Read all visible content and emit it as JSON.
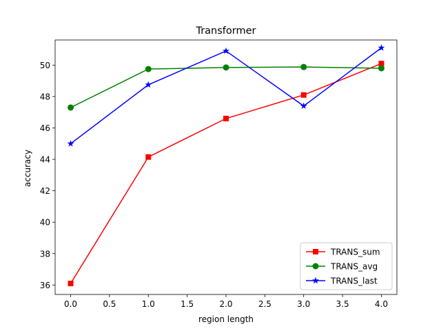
{
  "chart_data": {
    "type": "line",
    "title": "Transformer",
    "xlabel": "region length",
    "ylabel": "accuracy",
    "xlim": [
      -0.2,
      4.2
    ],
    "ylim": [
      35.4,
      51.6
    ],
    "xticks": [
      0.0,
      0.5,
      1.0,
      1.5,
      2.0,
      2.5,
      3.0,
      3.5,
      4.0
    ],
    "xtick_labels": [
      "0.0",
      "0.5",
      "1.0",
      "1.5",
      "2.0",
      "2.5",
      "3.0",
      "3.5",
      "4.0"
    ],
    "yticks": [
      36,
      38,
      40,
      42,
      44,
      46,
      48,
      50
    ],
    "ytick_labels": [
      "36",
      "38",
      "40",
      "42",
      "44",
      "46",
      "48",
      "50"
    ],
    "grid": false,
    "legend": {
      "position": "lower-right"
    },
    "x": [
      0,
      1,
      2,
      3,
      4
    ],
    "series": [
      {
        "name": "TRANS_sum",
        "values": [
          36.1,
          44.15,
          46.6,
          48.1,
          50.1
        ],
        "color": "#ff0000",
        "marker": "square"
      },
      {
        "name": "TRANS_avg",
        "values": [
          47.3,
          49.75,
          49.85,
          49.88,
          49.8
        ],
        "color": "#008000",
        "marker": "circle"
      },
      {
        "name": "TRANS_last",
        "values": [
          45.0,
          48.75,
          50.9,
          47.4,
          51.1
        ],
        "color": "#0000ff",
        "marker": "star"
      }
    ]
  }
}
